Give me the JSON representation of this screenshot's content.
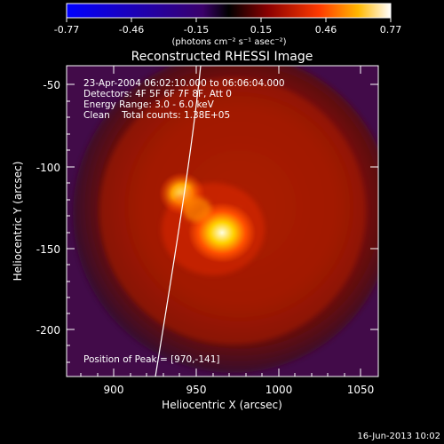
{
  "colorbar": {
    "ticks": [
      "-0.77",
      "-0.46",
      "-0.15",
      "0.15",
      "0.46",
      "0.77"
    ],
    "unit_label": "(photons cm⁻² s⁻¹ asec⁻²)"
  },
  "title": "Reconstructed RHESSI Image",
  "info": {
    "time": "23-Apr-2004 06:02:10.000 to 06:06:04.000",
    "detectors": "Detectors: 4F 5F 6F 7F 8F, Att 0",
    "energy": "Energy Range: 3.0 - 6.0 keV",
    "clean": "Clean    Total counts: 1.38E+05",
    "peak": "Position of Peak = [970,-141]"
  },
  "axes": {
    "xlabel": "Heliocentric X (arcsec)",
    "ylabel": "Heliocentric Y (arcsec)",
    "xticks": [
      "900",
      "950",
      "1000",
      "1050"
    ],
    "yticks": [
      "-50",
      "-100",
      "-150",
      "-200"
    ]
  },
  "footer": "16-Jun-2013 10:02"
}
